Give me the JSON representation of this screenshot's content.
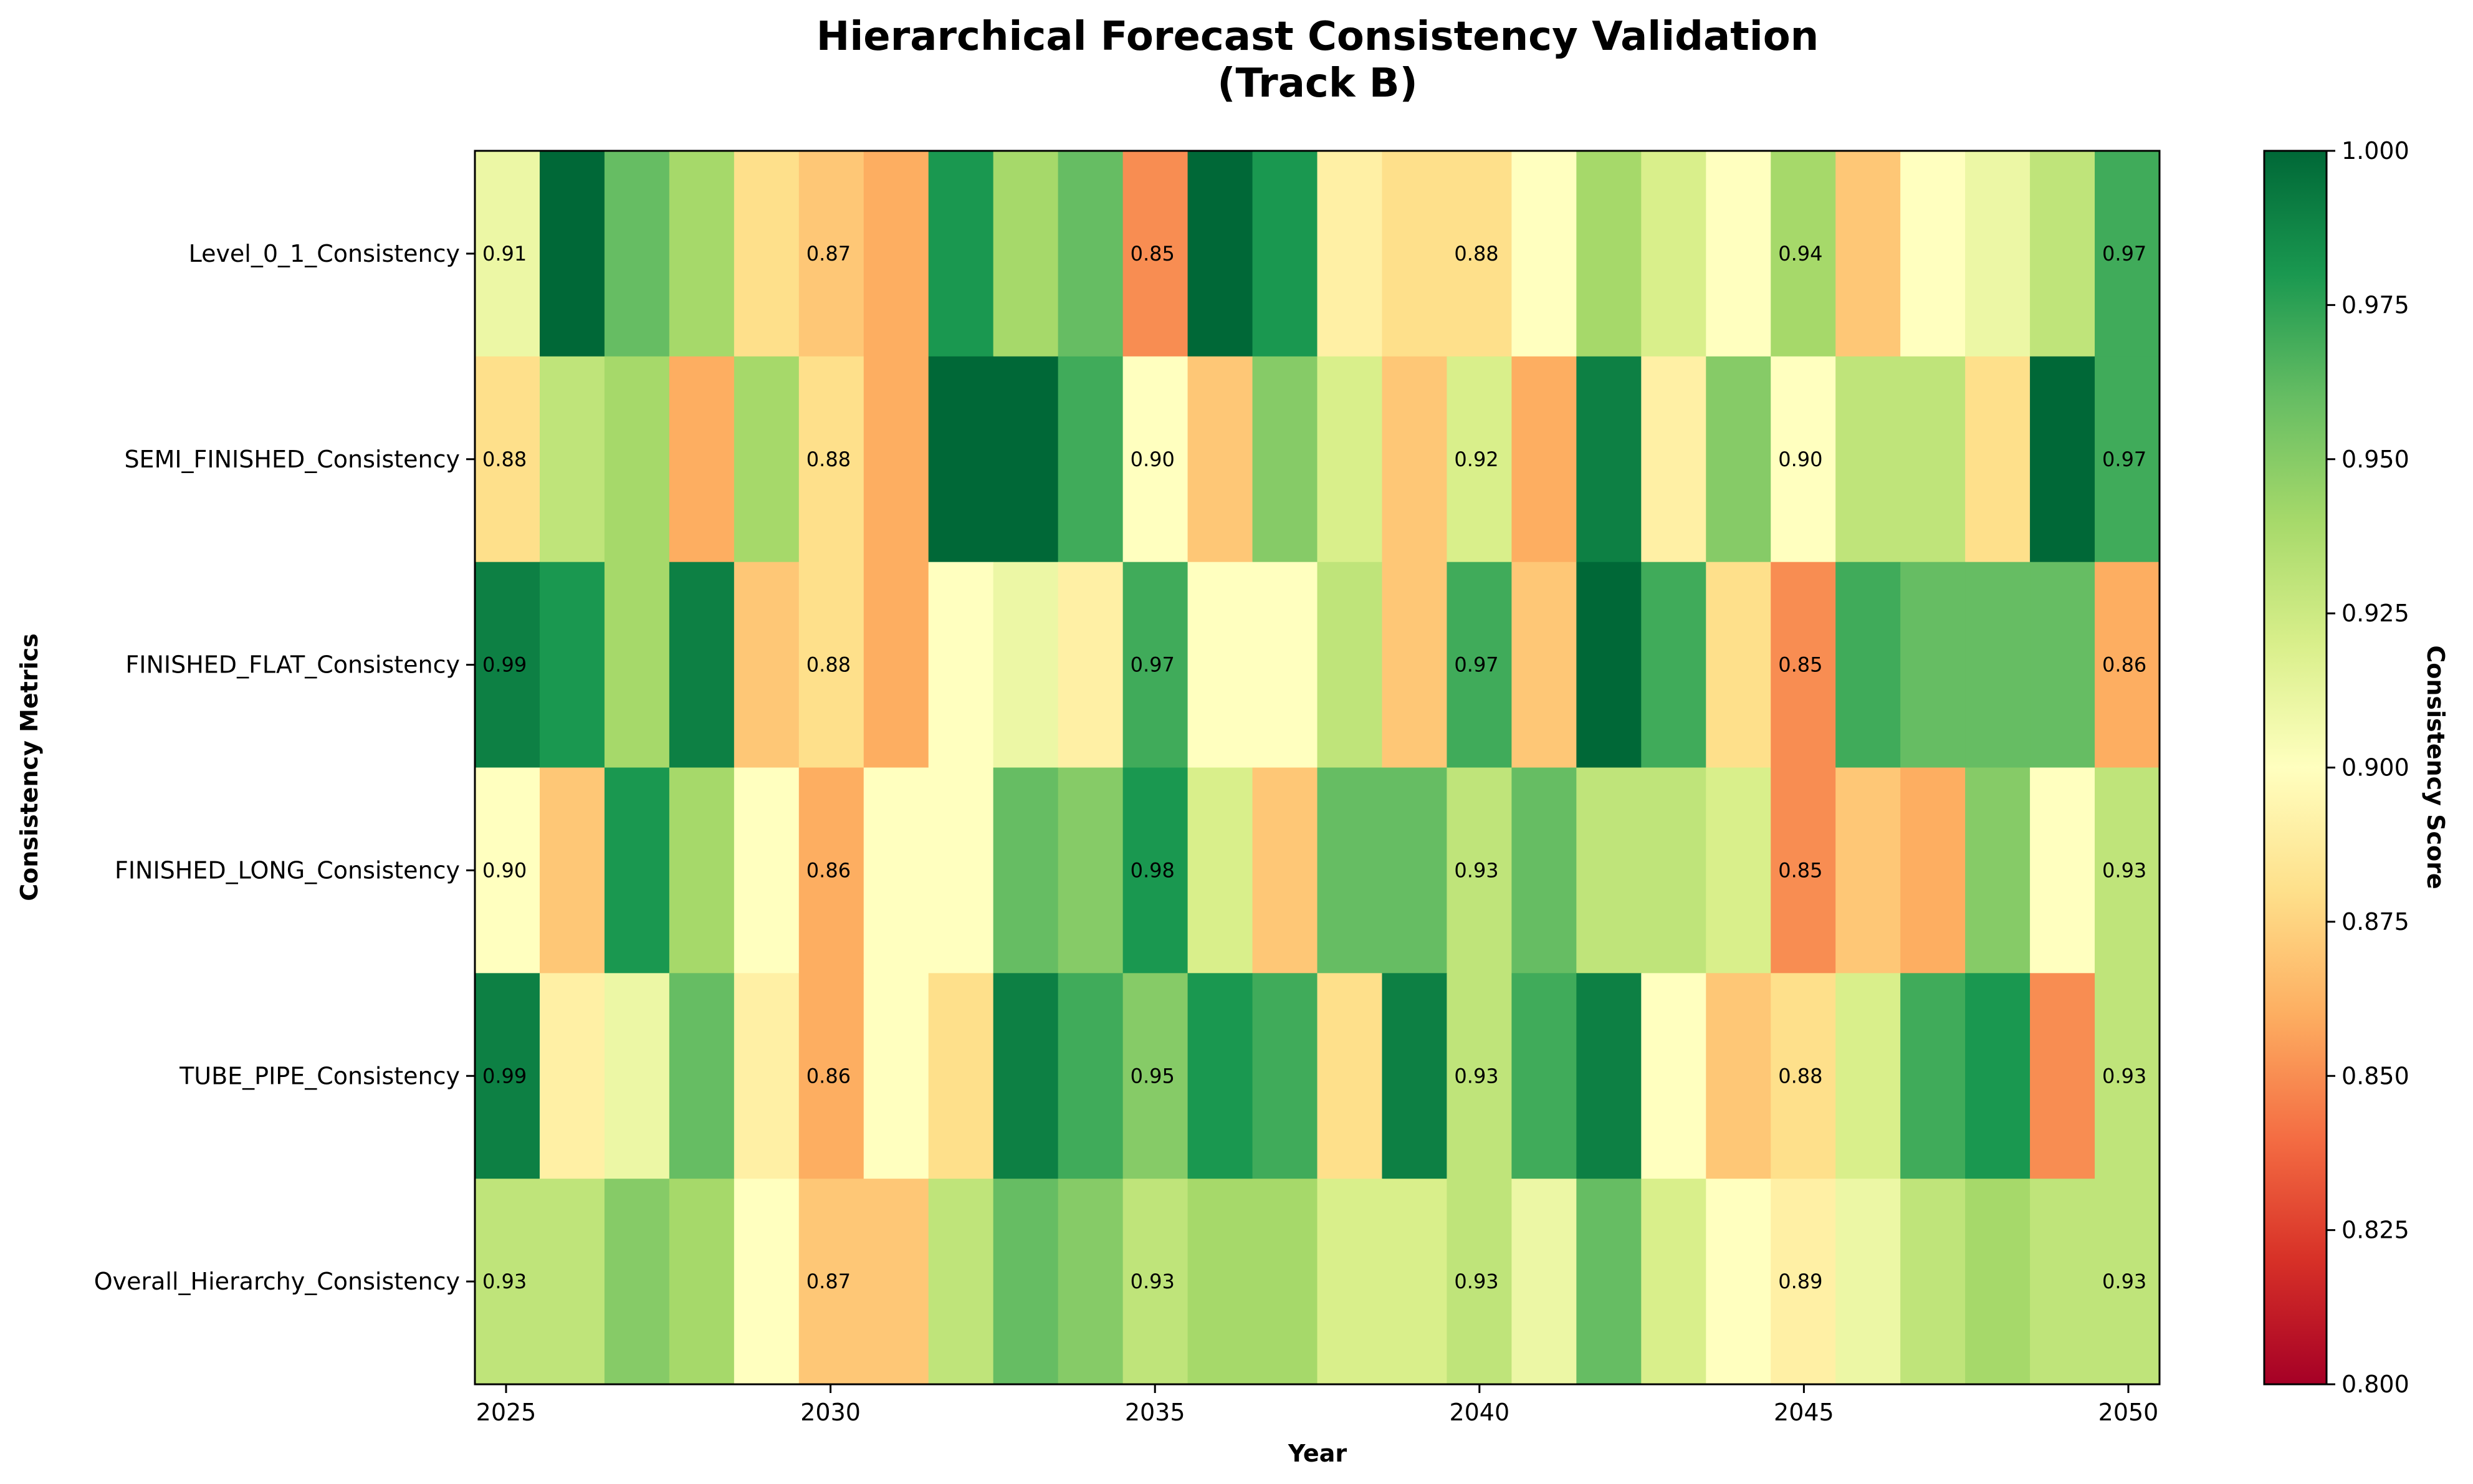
{
  "chart_data": {
    "type": "heatmap",
    "title": "Hierarchical Forecast Consistency Validation",
    "subtitle": "(Track B)",
    "xlabel": "Year",
    "ylabel": "Consistency Metrics",
    "x": [
      2025,
      2026,
      2027,
      2028,
      2029,
      2030,
      2031,
      2032,
      2033,
      2034,
      2035,
      2036,
      2037,
      2038,
      2039,
      2040,
      2041,
      2042,
      2043,
      2044,
      2045,
      2046,
      2047,
      2048,
      2049,
      2050
    ],
    "x_tick_labels": [
      "2025",
      "2030",
      "2035",
      "2040",
      "2045",
      "2050"
    ],
    "rows": [
      "Level_0_1_Consistency",
      "SEMI_FINISHED_Consistency",
      "FINISHED_FLAT_Consistency",
      "FINISHED_LONG_Consistency",
      "TUBE_PIPE_Consistency",
      "Overall_Hierarchy_Consistency"
    ],
    "values": [
      [
        0.91,
        1.0,
        0.96,
        0.94,
        0.88,
        0.87,
        0.86,
        0.98,
        0.94,
        0.96,
        0.85,
        1.0,
        0.98,
        0.89,
        0.88,
        0.88,
        0.9,
        0.94,
        0.92,
        0.9,
        0.94,
        0.87,
        0.9,
        0.91,
        0.93,
        0.97
      ],
      [
        0.88,
        0.93,
        0.94,
        0.86,
        0.94,
        0.88,
        0.86,
        1.0,
        1.0,
        0.97,
        0.9,
        0.87,
        0.95,
        0.92,
        0.87,
        0.92,
        0.86,
        0.99,
        0.89,
        0.95,
        0.9,
        0.93,
        0.93,
        0.88,
        1.0,
        0.97
      ],
      [
        0.99,
        0.98,
        0.94,
        0.99,
        0.87,
        0.88,
        0.86,
        0.9,
        0.91,
        0.89,
        0.97,
        0.9,
        0.9,
        0.93,
        0.87,
        0.97,
        0.87,
        1.0,
        0.97,
        0.88,
        0.85,
        0.97,
        0.96,
        0.96,
        0.96,
        0.86
      ],
      [
        0.9,
        0.87,
        0.98,
        0.94,
        0.9,
        0.86,
        0.9,
        0.9,
        0.96,
        0.95,
        0.98,
        0.92,
        0.87,
        0.96,
        0.96,
        0.93,
        0.96,
        0.93,
        0.93,
        0.92,
        0.85,
        0.87,
        0.86,
        0.95,
        0.9,
        0.93
      ],
      [
        0.99,
        0.89,
        0.91,
        0.96,
        0.89,
        0.86,
        0.9,
        0.88,
        0.99,
        0.97,
        0.95,
        0.98,
        0.97,
        0.88,
        0.99,
        0.93,
        0.97,
        0.99,
        0.9,
        0.87,
        0.88,
        0.92,
        0.97,
        0.98,
        0.85,
        0.93
      ],
      [
        0.93,
        0.93,
        0.95,
        0.94,
        0.9,
        0.87,
        0.87,
        0.93,
        0.96,
        0.95,
        0.93,
        0.94,
        0.94,
        0.92,
        0.92,
        0.93,
        0.91,
        0.96,
        0.92,
        0.9,
        0.89,
        0.91,
        0.93,
        0.94,
        0.93,
        0.93
      ]
    ],
    "annotated_columns": [
      0,
      5,
      10,
      15,
      20,
      25
    ],
    "colorbar": {
      "label": "Consistency Score",
      "min": 0.8,
      "max": 1.0,
      "ticks": [
        "0.800",
        "0.825",
        "0.850",
        "0.875",
        "0.900",
        "0.925",
        "0.950",
        "0.975",
        "1.000"
      ],
      "colormap": "RdYlGn"
    },
    "grid": false
  }
}
